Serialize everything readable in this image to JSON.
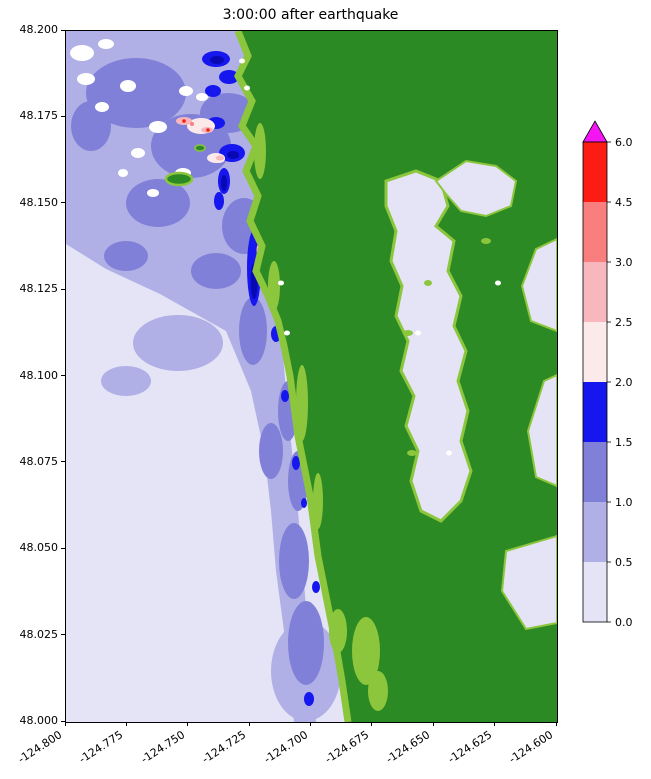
{
  "figure": {
    "title": "3:00:00 after earthquake"
  },
  "chart_data": {
    "type": "heatmap",
    "title": "3:00:00 after earthquake",
    "xlabel": "",
    "ylabel": "",
    "xlim": [
      -124.8,
      -124.6
    ],
    "ylim": [
      48.0,
      48.2
    ],
    "x_ticks": [
      "-124.800",
      "-124.775",
      "-124.750",
      "-124.725",
      "-124.700",
      "-124.675",
      "-124.650",
      "-124.625",
      "-124.600"
    ],
    "y_ticks": [
      "48.200",
      "48.175",
      "48.150",
      "48.125",
      "48.100",
      "48.075",
      "48.050",
      "48.025",
      "48.000"
    ],
    "grid": false,
    "colorbar": {
      "position": "right",
      "extend": "max",
      "levels": [
        0.0,
        0.5,
        1.0,
        1.5,
        2.0,
        2.5,
        3.0,
        4.5,
        6.0
      ],
      "tick_labels": [
        "0.0",
        "0.5",
        "1.0",
        "1.5",
        "2.0",
        "2.5",
        "3.0",
        "4.5",
        "6.0"
      ],
      "segment_colors": [
        "#e4e4f6",
        "#b0b0e6",
        "#8080d8",
        "#1616ee",
        "#fce9ea",
        "#f8b7bd",
        "#f97f7f",
        "#fb1c13"
      ],
      "over_color": "#f316f3"
    },
    "map_colors": {
      "land": "#2c8a25",
      "coastal_fringe": "#8cc63c",
      "deep_spot": "#0909b4",
      "white_patch": "#ffffff"
    }
  }
}
